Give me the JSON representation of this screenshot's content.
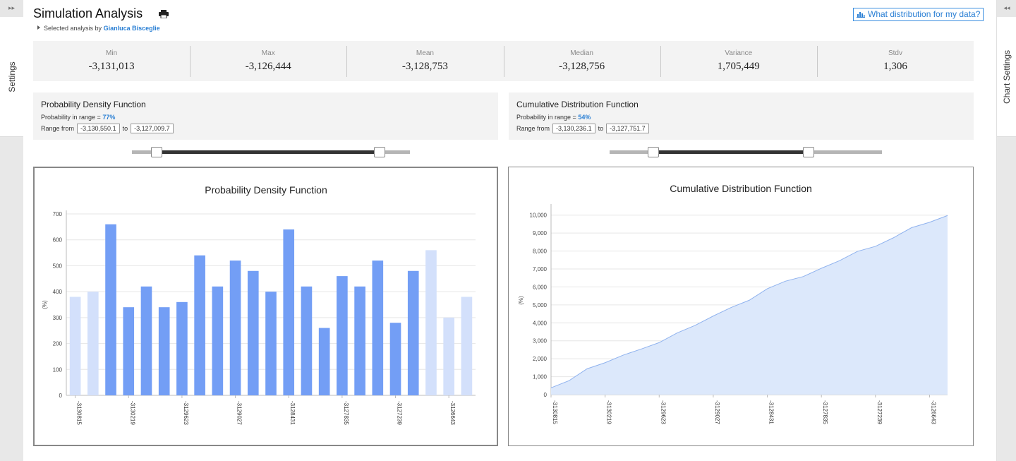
{
  "sidebars": {
    "left_tab": "Settings",
    "left_collapse": "▸▸",
    "right_tab": "Chart Settings",
    "right_collapse": "◂◂"
  },
  "header": {
    "title": "Simulation Analysis",
    "subtitle_prefix": "Selected analysis by",
    "user_name": "Gianluca Bisceglie",
    "dist_link": "What distribution for my data?"
  },
  "stats": [
    {
      "label": "Min",
      "value": "-3,131,013"
    },
    {
      "label": "Max",
      "value": "-3,126,444"
    },
    {
      "label": "Mean",
      "value": "-3,128,753"
    },
    {
      "label": "Median",
      "value": "-3,128,756"
    },
    {
      "label": "Variance",
      "value": "1,705,449"
    },
    {
      "label": "Stdv",
      "value": "1,306"
    }
  ],
  "pdf_panel": {
    "title": "Probability Density Function",
    "prob_label": "Probability in range =",
    "prob_value": "77%",
    "range_label": "Range from",
    "range_from": "-3,130,550.1",
    "range_to_label": "to",
    "range_to": "-3,127,009.7",
    "slider_low": 0.09,
    "slider_high": 0.89
  },
  "cdf_panel": {
    "title": "Cumulative Distribution Function",
    "prob_label": "Probability in range =",
    "prob_value": "54%",
    "range_label": "Range from",
    "range_from": "-3,130,236.1",
    "range_to_label": "to",
    "range_to": "-3,127,751.7",
    "slider_low": 0.16,
    "slider_high": 0.73
  },
  "colors": {
    "bar_active": "#739ef5",
    "bar_inactive": "#d3e0fb",
    "area_fill": "#dce8fb",
    "area_line": "#8fb2ee",
    "link": "#2a7fd4"
  },
  "chart_data": [
    {
      "type": "bar",
      "title": "Probability Density Function",
      "ylabel": "(%)",
      "ylim": [
        0,
        700
      ],
      "yticks": [
        0,
        100,
        200,
        300,
        400,
        500,
        600,
        700
      ],
      "values": [
        380,
        400,
        660,
        340,
        420,
        340,
        360,
        540,
        420,
        520,
        480,
        400,
        640,
        420,
        260,
        460,
        420,
        520,
        280,
        480,
        560,
        300,
        380
      ],
      "active": [
        false,
        false,
        true,
        true,
        true,
        true,
        true,
        true,
        true,
        true,
        true,
        true,
        true,
        true,
        true,
        true,
        true,
        true,
        true,
        true,
        false,
        false,
        false
      ],
      "tick_labels": [
        {
          "bar": 0,
          "label": "-3130815"
        },
        {
          "bar": 3,
          "label": "-3130219"
        },
        {
          "bar": 6,
          "label": "-3129623"
        },
        {
          "bar": 9,
          "label": "-3129027"
        },
        {
          "bar": 12,
          "label": "-3128431"
        },
        {
          "bar": 15,
          "label": "-3127835"
        },
        {
          "bar": 18,
          "label": "-3127239"
        },
        {
          "bar": 21,
          "label": "-3126643"
        }
      ],
      "grid": true
    },
    {
      "type": "area",
      "title": "Cumulative Distribution Function",
      "ylabel": "(%)",
      "ylim": [
        0,
        10500
      ],
      "yticks": [
        0,
        1000,
        2000,
        3000,
        4000,
        5000,
        6000,
        7000,
        8000,
        9000,
        10000
      ],
      "ytick_labels": [
        "0",
        "1,000",
        "2,000",
        "3,000",
        "4,000",
        "5,000",
        "6,000",
        "7,000",
        "8,000",
        "9,000",
        "10,000"
      ],
      "values": [
        380,
        780,
        1440,
        1780,
        2200,
        2540,
        2900,
        3440,
        3860,
        4380,
        4860,
        5260,
        5900,
        6320,
        6580,
        7040,
        7460,
        7980,
        8260,
        8740,
        9300,
        9600,
        9980
      ],
      "tick_labels": [
        {
          "point": 0,
          "label": "-3130815"
        },
        {
          "point": 3,
          "label": "-3130219"
        },
        {
          "point": 6,
          "label": "-3129623"
        },
        {
          "point": 9,
          "label": "-3129027"
        },
        {
          "point": 12,
          "label": "-3128431"
        },
        {
          "point": 15,
          "label": "-3127835"
        },
        {
          "point": 18,
          "label": "-3127239"
        },
        {
          "point": 21,
          "label": "-3126643"
        }
      ],
      "grid": true
    }
  ]
}
